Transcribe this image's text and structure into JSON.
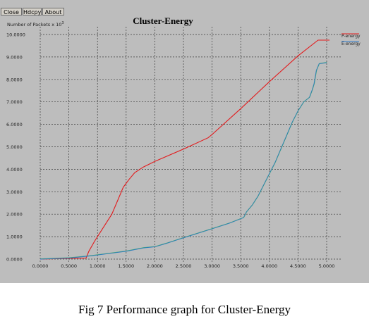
{
  "toolbar": {
    "close_label": "Close",
    "hdcpy_label": "Hdcpy",
    "about_label": "About"
  },
  "caption": "Fig 7  Performance graph for Cluster-Energy",
  "colors": {
    "background": "#bdbdbd",
    "grid": "#3a3a3a",
    "axis": "#000000"
  },
  "chart_data": {
    "type": "line",
    "title": "Cluster-Energy",
    "ylabel_prefix": "Number of Packets x 10",
    "ylabel_exp": "3",
    "xlabel": "",
    "xlim": [
      0,
      5
    ],
    "ylim": [
      0,
      10
    ],
    "grid": true,
    "legend_position": "top-right",
    "xticks": [
      {
        "v": 0.0,
        "label": "0.0000"
      },
      {
        "v": 0.5,
        "label": "0.5000"
      },
      {
        "v": 1.0,
        "label": "1.0000"
      },
      {
        "v": 1.5,
        "label": "1.5000"
      },
      {
        "v": 2.0,
        "label": "2.0000"
      },
      {
        "v": 2.5,
        "label": "2.5000"
      },
      {
        "v": 3.0,
        "label": "3.0000"
      },
      {
        "v": 3.5,
        "label": "3.5000"
      },
      {
        "v": 4.0,
        "label": "4.0000"
      },
      {
        "v": 4.5,
        "label": "4.5000"
      },
      {
        "v": 5.0,
        "label": "5.0000"
      }
    ],
    "yticks": [
      {
        "v": 0,
        "label": "0.0000"
      },
      {
        "v": 1,
        "label": "1.0000"
      },
      {
        "v": 2,
        "label": "2.0000"
      },
      {
        "v": 3,
        "label": "3.0000"
      },
      {
        "v": 4,
        "label": "4.0000"
      },
      {
        "v": 5,
        "label": "5.0000"
      },
      {
        "v": 6,
        "label": "6.0000"
      },
      {
        "v": 7,
        "label": "7.0000"
      },
      {
        "v": 8,
        "label": "8.0000"
      },
      {
        "v": 9,
        "label": "9.0000"
      },
      {
        "v": 10,
        "label": "10.0000"
      }
    ],
    "series": [
      {
        "name": "P-energy",
        "color": "#e31a1c",
        "points": [
          [
            0.0,
            0.0
          ],
          [
            0.8,
            0.05
          ],
          [
            0.85,
            0.35
          ],
          [
            0.95,
            0.8
          ],
          [
            1.1,
            1.4
          ],
          [
            1.25,
            2.0
          ],
          [
            1.35,
            2.6
          ],
          [
            1.45,
            3.2
          ],
          [
            1.55,
            3.55
          ],
          [
            1.65,
            3.85
          ],
          [
            1.8,
            4.1
          ],
          [
            2.0,
            4.35
          ],
          [
            2.5,
            4.9
          ],
          [
            2.93,
            5.4
          ],
          [
            3.0,
            5.55
          ],
          [
            3.5,
            6.7
          ],
          [
            4.0,
            7.9
          ],
          [
            4.5,
            9.05
          ],
          [
            4.85,
            9.75
          ],
          [
            5.05,
            9.75
          ]
        ]
      },
      {
        "name": "E-energy",
        "color": "#2a78c8",
        "points": [
          [
            0.0,
            0.0
          ],
          [
            0.5,
            0.05
          ],
          [
            0.9,
            0.15
          ],
          [
            1.2,
            0.25
          ],
          [
            1.5,
            0.35
          ],
          [
            1.8,
            0.5
          ],
          [
            2.0,
            0.55
          ],
          [
            2.2,
            0.7
          ],
          [
            2.5,
            0.95
          ],
          [
            3.0,
            1.35
          ],
          [
            3.3,
            1.6
          ],
          [
            3.55,
            1.85
          ],
          [
            3.6,
            2.1
          ],
          [
            3.7,
            2.4
          ],
          [
            3.8,
            2.8
          ],
          [
            3.9,
            3.3
          ],
          [
            4.0,
            3.8
          ],
          [
            4.1,
            4.3
          ],
          [
            4.2,
            4.9
          ],
          [
            4.3,
            5.5
          ],
          [
            4.4,
            6.1
          ],
          [
            4.5,
            6.6
          ],
          [
            4.6,
            7.0
          ],
          [
            4.7,
            7.2
          ],
          [
            4.75,
            7.55
          ],
          [
            4.78,
            7.8
          ],
          [
            4.82,
            8.4
          ],
          [
            4.87,
            8.7
          ],
          [
            5.0,
            8.75
          ]
        ]
      }
    ]
  }
}
